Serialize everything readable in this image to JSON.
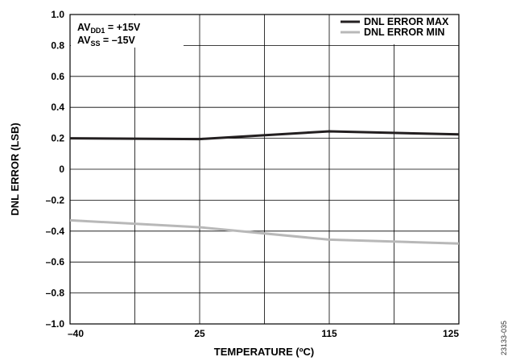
{
  "chart_data": {
    "type": "line",
    "xlabel": "TEMPERATURE (ºC)",
    "ylabel": "DNL ERROR (LSB)",
    "x_ticks": [
      "–40",
      "25",
      "115",
      "125"
    ],
    "x_tick_values": [
      -40,
      25,
      115,
      125
    ],
    "y_ticks": [
      "1.0",
      "0.8",
      "0.6",
      "0.4",
      "0.2",
      "0",
      "–0.2",
      "–0.4",
      "–0.6",
      "–0.8",
      "–1.0"
    ],
    "y_tick_values": [
      1.0,
      0.8,
      0.6,
      0.4,
      0.2,
      0,
      -0.2,
      -0.4,
      -0.6,
      -0.8,
      -1.0
    ],
    "ylim": [
      -1.0,
      1.0
    ],
    "grid": true,
    "legend_position": "top-right",
    "series": [
      {
        "name": "DNL ERROR MAX",
        "color": "#231f20",
        "x": [
          -40,
          25,
          115,
          125
        ],
        "y": [
          0.2,
          0.195,
          0.245,
          0.225
        ]
      },
      {
        "name": "DNL ERROR MIN",
        "color": "#b8b8b8",
        "x": [
          -40,
          25,
          115,
          125
        ],
        "y": [
          -0.33,
          -0.375,
          -0.455,
          -0.48
        ]
      }
    ],
    "annotations": {
      "line1_main": "AV",
      "line1_sub": "DD1",
      "line1_tail": " = +15V",
      "line2_main": "AV",
      "line2_sub": "SS",
      "line2_tail": " = –15V"
    }
  },
  "figure_id": "23133-035"
}
